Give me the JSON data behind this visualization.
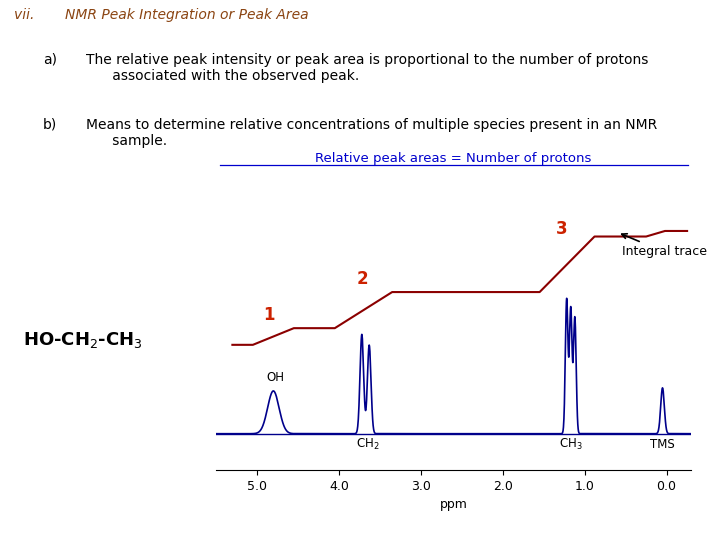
{
  "bg_color": "#ffffff",
  "title_color": "#8B4513",
  "subtitle_text": "Relative peak areas = Number of protons",
  "subtitle_color": "#0000CD",
  "nmr_line_color": "#00008B",
  "integral_color": "#8B0000",
  "label_color_black": "#000000",
  "label_color_red": "#CC2200",
  "ppm_label": "ppm",
  "x_ticks": [
    5.0,
    4.0,
    3.0,
    2.0,
    1.0,
    0.0
  ],
  "x_tick_labels": [
    "5.0",
    "4.0",
    "3.0",
    "2.0",
    "1.0",
    "0.0"
  ]
}
